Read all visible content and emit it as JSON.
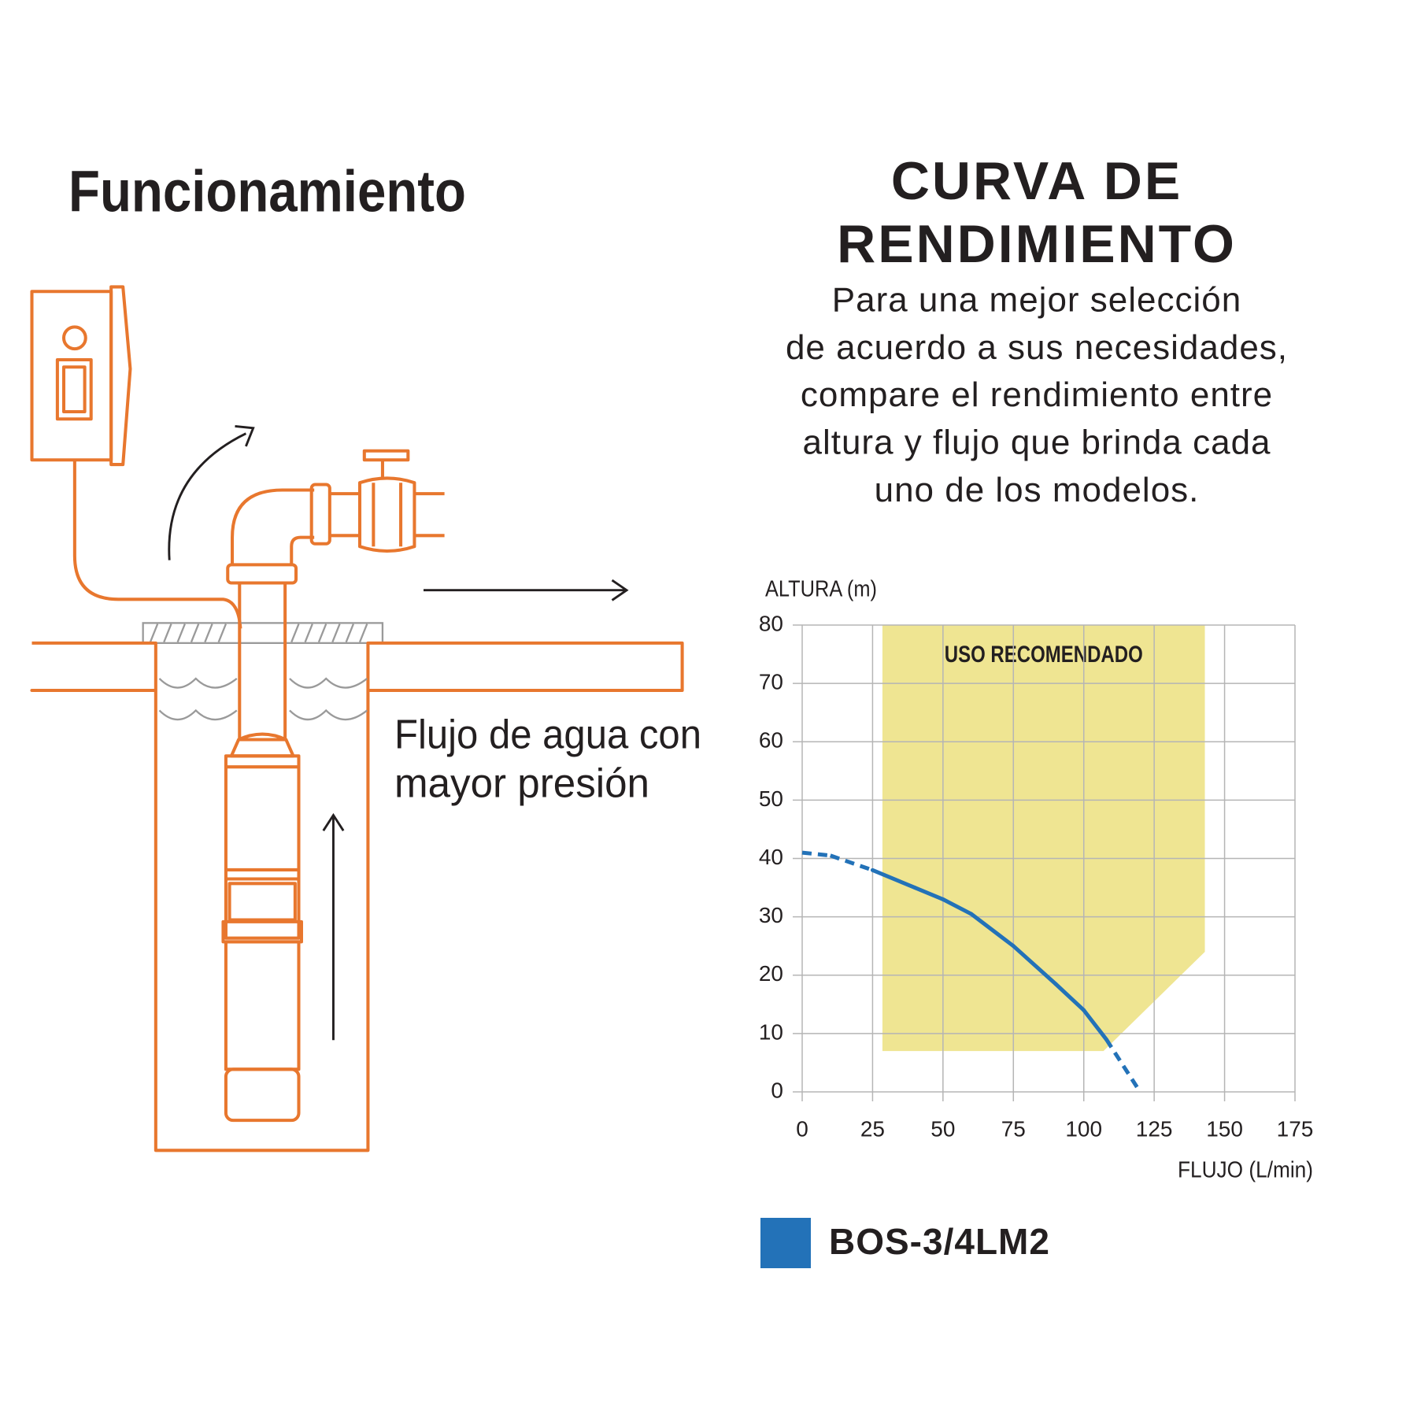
{
  "illustration": {
    "title": "Funcionamiento",
    "caption": [
      "Flujo de agua con",
      "mayor presión"
    ]
  },
  "header": {
    "title": [
      "CURVA DE",
      "RENDIMIENTO"
    ],
    "description": [
      "Para una mejor selección",
      "de acuerdo a sus necesidades,",
      "compare el rendimiento entre",
      "altura y flujo que brinda cada",
      "uno de los modelos."
    ]
  },
  "chart_data": {
    "type": "line",
    "y_label": "ALTURA (m)",
    "x_label": "FLUJO (L/min)",
    "xlim": [
      0,
      175
    ],
    "xticks": [
      0,
      25,
      50,
      75,
      100,
      125,
      150,
      175
    ],
    "ylim": [
      0,
      80
    ],
    "yticks": [
      0,
      10,
      20,
      30,
      40,
      50,
      60,
      70,
      80
    ],
    "grid": true,
    "region": {
      "label": "USO RECOMENDADO",
      "color": "#efe592",
      "x": [
        28.5,
        143,
        143,
        107,
        28.5
      ],
      "y": [
        80,
        80,
        24,
        7,
        7
      ]
    },
    "series": [
      {
        "name": "BOS-3/4LM2",
        "color": "#2372b8",
        "x": [
          0,
          10,
          25,
          40,
          50,
          60,
          75,
          90,
          100,
          108,
          120
        ],
        "values": [
          41,
          40.5,
          38,
          35,
          33,
          30.5,
          25,
          18.5,
          14,
          9,
          0
        ],
        "segment_styles": [
          "dashed",
          "dashed",
          "solid",
          "solid",
          "solid",
          "solid",
          "solid",
          "solid",
          "solid",
          "dashed"
        ]
      }
    ]
  }
}
